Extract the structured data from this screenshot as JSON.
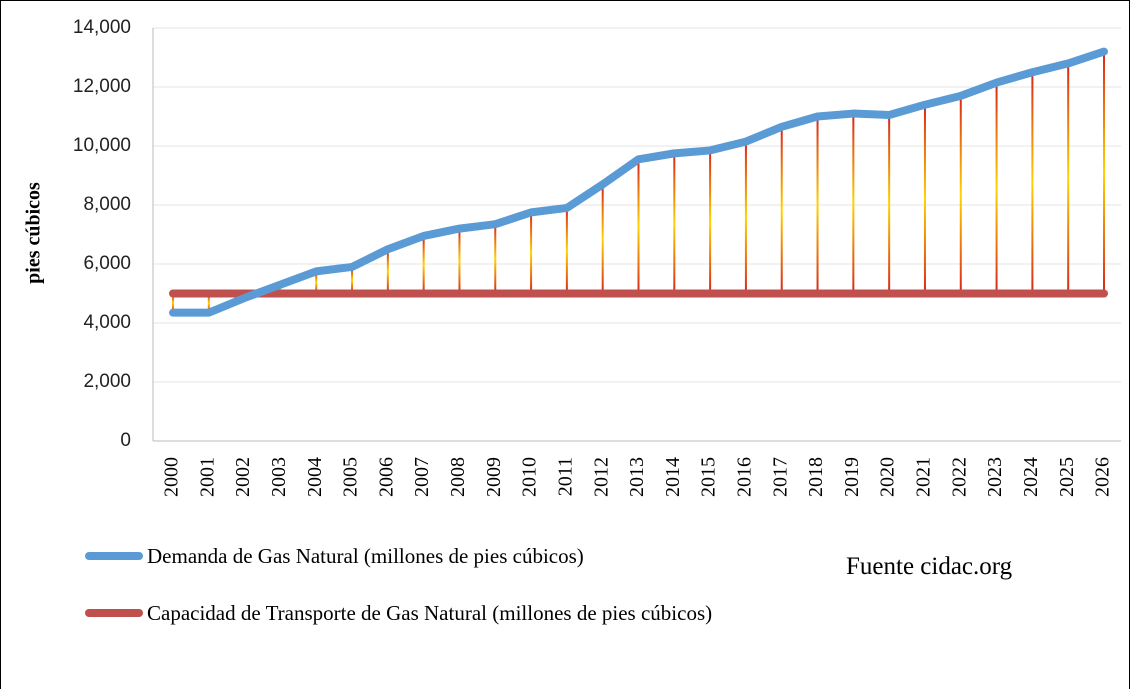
{
  "chart_data": {
    "type": "line",
    "y_label": "pies cúbicos",
    "source": "Fuente cidac.org",
    "categories": [
      "2000",
      "2001",
      "2002",
      "2003",
      "2004",
      "2005",
      "2006",
      "2007",
      "2008",
      "2009",
      "2010",
      "2011",
      "2012",
      "2013",
      "2014",
      "2015",
      "2016",
      "2017",
      "2018",
      "2019",
      "2020",
      "2021",
      "2022",
      "2023",
      "2024",
      "2025",
      "2026"
    ],
    "series": [
      {
        "name": "Demanda de Gas Natural (millones de pies cúbicos)",
        "color": "#5b9bd5",
        "values": [
          4350,
          4350,
          4850,
          5300,
          5750,
          5900,
          6500,
          6950,
          7200,
          7350,
          7750,
          7900,
          8700,
          9550,
          9750,
          9850,
          10150,
          10650,
          11000,
          11100,
          11050,
          11400,
          11700,
          12150,
          12500,
          12800,
          13200
        ]
      },
      {
        "name": "Capacidad de Transporte de Gas Natural (millones de pies cúbicos)",
        "color": "#c0504d",
        "values": [
          5000,
          5000,
          5000,
          5000,
          5000,
          5000,
          5000,
          5000,
          5000,
          5000,
          5000,
          5000,
          5000,
          5000,
          5000,
          5000,
          5000,
          5000,
          5000,
          5000,
          5000,
          5000,
          5000,
          5000,
          5000,
          5000,
          5000
        ]
      }
    ],
    "ylim": [
      0,
      14000
    ],
    "yticks": [
      {
        "value": 0,
        "label": "0"
      },
      {
        "value": 2000,
        "label": "2,000"
      },
      {
        "value": 4000,
        "label": "4,000"
      },
      {
        "value": 6000,
        "label": "6,000"
      },
      {
        "value": 8000,
        "label": "8,000"
      },
      {
        "value": 10000,
        "label": "10,000"
      },
      {
        "value": 12000,
        "label": "12,000"
      },
      {
        "value": 14000,
        "label": "14,000"
      }
    ],
    "grid": true
  }
}
